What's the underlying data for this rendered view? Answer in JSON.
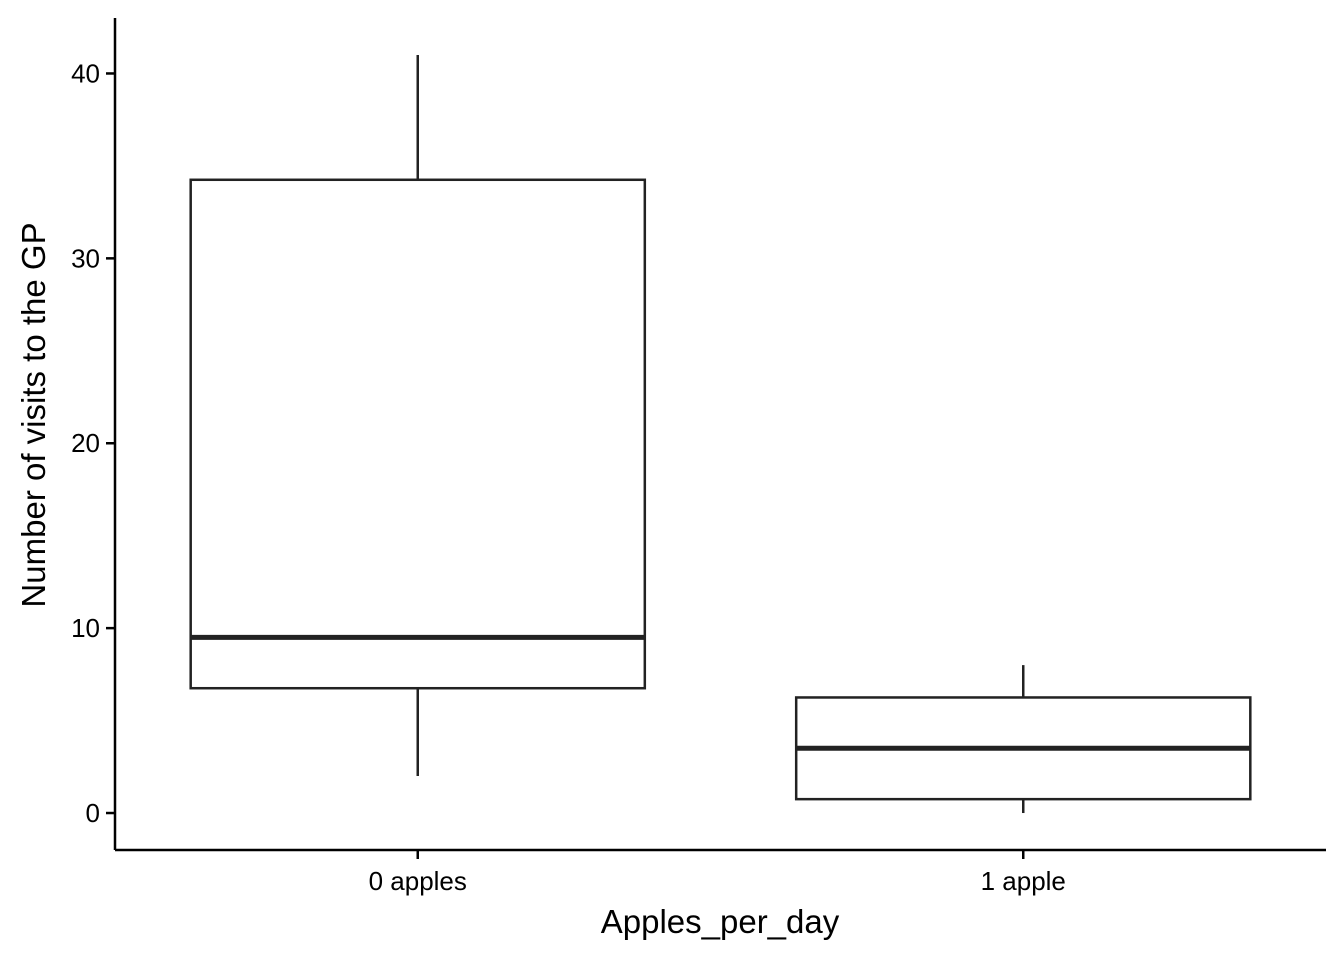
{
  "chart_data": {
    "type": "boxplot",
    "title": "",
    "xlabel": "Apples_per_day",
    "ylabel": "Number of visits to the GP",
    "ylim": [
      -2,
      43
    ],
    "y_ticks": [
      0,
      10,
      20,
      30,
      40
    ],
    "y_tick_labels": [
      "0",
      "10",
      "20",
      "30",
      "40"
    ],
    "categories": [
      "0 apples",
      "1 apple"
    ],
    "boxes": [
      {
        "category": "0 apples",
        "whisker_low": 2,
        "q1": 6.75,
        "median": 9.5,
        "q3": 34.25,
        "whisker_high": 41
      },
      {
        "category": "1 apple",
        "whisker_low": 0,
        "q1": 0.75,
        "median": 3.5,
        "q3": 6.25,
        "whisker_high": 8
      }
    ],
    "grid": false,
    "legend": "none",
    "colors": {
      "box_fill": "#ffffff",
      "box_stroke": "#222222",
      "axis": "#000000"
    }
  }
}
